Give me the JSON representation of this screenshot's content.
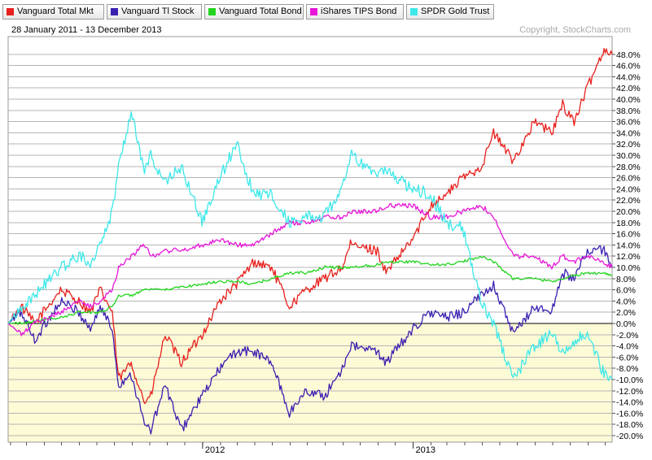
{
  "date_range": "28 January 2011 - 13 December 2013",
  "copyright": "Copyright, StockCharts.com",
  "colors": {
    "neg_bg": "#fdfad6",
    "pos_bg": "#ffffff",
    "grid": "#b5b5b5",
    "zero_line": "#000000"
  },
  "chart_data": {
    "type": "line",
    "x_tick_labels": [
      "2012",
      "2013"
    ],
    "x_tick_dates": [
      "2012-01-01",
      "2013-01-01"
    ],
    "x_range": [
      "2011-01-28",
      "2013-12-13"
    ],
    "y_axis": {
      "unit": "%",
      "ylim": [
        -21,
        50
      ],
      "tick_step": 2,
      "tick_labels": [
        "48.0%",
        "46.0%",
        "44.0%",
        "42.0%",
        "40.0%",
        "38.0%",
        "36.0%",
        "34.0%",
        "32.0%",
        "30.0%",
        "28.0%",
        "26.0%",
        "24.0%",
        "22.0%",
        "20.0%",
        "18.0%",
        "16.0%",
        "14.0%",
        "12.0%",
        "10.0%",
        "8.0%",
        "6.0%",
        "4.0%",
        "2.0%",
        "0.0%",
        "-2.0%",
        "-4.0%",
        "-6.0%",
        "-8.0%",
        "-10.0%",
        "-12.0%",
        "-14.0%",
        "-16.0%",
        "-18.0%",
        "-20.0%"
      ]
    },
    "grid": true,
    "legend_position": "top",
    "series": [
      {
        "name": "Vanguard Total Mkt",
        "color": "#e8201c",
        "points": [
          [
            "2011-01-28",
            0
          ],
          [
            "2011-02-20",
            3
          ],
          [
            "2011-03-15",
            0
          ],
          [
            "2011-04-29",
            6
          ],
          [
            "2011-05-31",
            4
          ],
          [
            "2011-06-20",
            2
          ],
          [
            "2011-07-07",
            6
          ],
          [
            "2011-07-28",
            2
          ],
          [
            "2011-08-08",
            -10
          ],
          [
            "2011-08-30",
            -7
          ],
          [
            "2011-09-22",
            -14
          ],
          [
            "2011-10-03",
            -13
          ],
          [
            "2011-10-28",
            -2
          ],
          [
            "2011-11-25",
            -7
          ],
          [
            "2011-12-31",
            -2
          ],
          [
            "2012-01-31",
            4
          ],
          [
            "2012-02-29",
            7
          ],
          [
            "2012-03-30",
            11
          ],
          [
            "2012-04-30",
            10
          ],
          [
            "2012-05-31",
            3
          ],
          [
            "2012-06-29",
            6
          ],
          [
            "2012-07-31",
            8
          ],
          [
            "2012-08-31",
            10
          ],
          [
            "2012-09-14",
            14
          ],
          [
            "2012-10-31",
            13
          ],
          [
            "2012-11-15",
            9
          ],
          [
            "2012-12-31",
            15
          ],
          [
            "2013-01-31",
            21
          ],
          [
            "2013-02-28",
            23
          ],
          [
            "2013-03-28",
            26
          ],
          [
            "2013-04-30",
            28
          ],
          [
            "2013-05-21",
            34
          ],
          [
            "2013-06-24",
            29
          ],
          [
            "2013-07-31",
            36
          ],
          [
            "2013-08-30",
            34
          ],
          [
            "2013-09-18",
            39
          ],
          [
            "2013-10-08",
            36
          ],
          [
            "2013-10-31",
            42
          ],
          [
            "2013-11-29",
            49
          ],
          [
            "2013-12-13",
            48
          ]
        ]
      },
      {
        "name": "Vanguard Tl Stock",
        "color": "#3a1fb0",
        "points": [
          [
            "2011-01-28",
            0
          ],
          [
            "2011-02-20",
            2
          ],
          [
            "2011-03-15",
            -3
          ],
          [
            "2011-04-29",
            4
          ],
          [
            "2011-05-31",
            2
          ],
          [
            "2011-06-20",
            -1
          ],
          [
            "2011-07-07",
            3
          ],
          [
            "2011-07-28",
            -1
          ],
          [
            "2011-08-08",
            -11
          ],
          [
            "2011-08-30",
            -9
          ],
          [
            "2011-09-22",
            -18
          ],
          [
            "2011-10-03",
            -19
          ],
          [
            "2011-10-28",
            -11
          ],
          [
            "2011-11-25",
            -19
          ],
          [
            "2011-12-31",
            -13
          ],
          [
            "2012-01-31",
            -8
          ],
          [
            "2012-02-29",
            -5
          ],
          [
            "2012-03-30",
            -5
          ],
          [
            "2012-04-30",
            -7
          ],
          [
            "2012-05-31",
            -16
          ],
          [
            "2012-06-29",
            -12
          ],
          [
            "2012-07-31",
            -13
          ],
          [
            "2012-08-31",
            -8
          ],
          [
            "2012-09-14",
            -4
          ],
          [
            "2012-10-31",
            -5
          ],
          [
            "2012-11-15",
            -7
          ],
          [
            "2012-12-31",
            -1
          ],
          [
            "2013-01-31",
            2
          ],
          [
            "2013-02-28",
            1
          ],
          [
            "2013-03-28",
            2
          ],
          [
            "2013-04-30",
            5
          ],
          [
            "2013-05-21",
            7
          ],
          [
            "2013-06-24",
            -2
          ],
          [
            "2013-07-31",
            3
          ],
          [
            "2013-08-30",
            2
          ],
          [
            "2013-09-18",
            9
          ],
          [
            "2013-10-08",
            8
          ],
          [
            "2013-10-31",
            13
          ],
          [
            "2013-11-29",
            13
          ],
          [
            "2013-12-13",
            10
          ]
        ]
      },
      {
        "name": "Vanguard Total Bond",
        "color": "#22d41e",
        "points": [
          [
            "2011-01-28",
            0
          ],
          [
            "2011-02-20",
            0
          ],
          [
            "2011-03-15",
            0.5
          ],
          [
            "2011-04-29",
            1
          ],
          [
            "2011-05-31",
            2
          ],
          [
            "2011-06-20",
            2
          ],
          [
            "2011-07-07",
            2
          ],
          [
            "2011-07-28",
            3
          ],
          [
            "2011-08-08",
            5
          ],
          [
            "2011-08-30",
            5
          ],
          [
            "2011-09-22",
            6
          ],
          [
            "2011-10-03",
            6
          ],
          [
            "2011-10-28",
            6
          ],
          [
            "2011-11-25",
            6.5
          ],
          [
            "2011-12-31",
            7
          ],
          [
            "2012-01-31",
            7.5
          ],
          [
            "2012-02-29",
            7.5
          ],
          [
            "2012-03-30",
            7
          ],
          [
            "2012-04-30",
            8
          ],
          [
            "2012-05-31",
            9
          ],
          [
            "2012-06-29",
            9
          ],
          [
            "2012-07-31",
            10
          ],
          [
            "2012-08-31",
            10
          ],
          [
            "2012-09-14",
            10
          ],
          [
            "2012-10-31",
            10.5
          ],
          [
            "2012-11-15",
            11
          ],
          [
            "2012-12-31",
            11
          ],
          [
            "2013-01-31",
            10.5
          ],
          [
            "2013-02-28",
            10.5
          ],
          [
            "2013-03-28",
            11
          ],
          [
            "2013-04-30",
            12
          ],
          [
            "2013-05-21",
            11
          ],
          [
            "2013-06-24",
            8
          ],
          [
            "2013-07-31",
            8
          ],
          [
            "2013-08-30",
            7.5
          ],
          [
            "2013-09-18",
            8
          ],
          [
            "2013-10-08",
            8.5
          ],
          [
            "2013-10-31",
            9
          ],
          [
            "2013-11-29",
            9
          ],
          [
            "2013-12-13",
            8.5
          ]
        ]
      },
      {
        "name": "iShares TIPS Bond",
        "color": "#e615d8",
        "points": [
          [
            "2011-01-28",
            0
          ],
          [
            "2011-02-20",
            -2
          ],
          [
            "2011-03-15",
            0
          ],
          [
            "2011-04-29",
            2
          ],
          [
            "2011-05-31",
            4
          ],
          [
            "2011-06-20",
            3
          ],
          [
            "2011-07-07",
            4
          ],
          [
            "2011-07-28",
            6
          ],
          [
            "2011-08-08",
            10
          ],
          [
            "2011-08-30",
            12
          ],
          [
            "2011-09-22",
            14
          ],
          [
            "2011-10-03",
            12
          ],
          [
            "2011-10-28",
            13
          ],
          [
            "2011-11-25",
            13
          ],
          [
            "2011-12-31",
            14
          ],
          [
            "2012-01-31",
            15
          ],
          [
            "2012-02-29",
            14
          ],
          [
            "2012-03-30",
            14
          ],
          [
            "2012-04-30",
            16
          ],
          [
            "2012-05-31",
            18
          ],
          [
            "2012-06-29",
            18
          ],
          [
            "2012-07-31",
            19
          ],
          [
            "2012-08-31",
            19
          ],
          [
            "2012-09-14",
            20
          ],
          [
            "2012-10-31",
            20
          ],
          [
            "2012-11-15",
            21
          ],
          [
            "2012-12-31",
            21
          ],
          [
            "2013-01-31",
            19
          ],
          [
            "2013-02-28",
            19
          ],
          [
            "2013-03-28",
            20
          ],
          [
            "2013-04-30",
            21
          ],
          [
            "2013-05-21",
            19
          ],
          [
            "2013-06-24",
            12
          ],
          [
            "2013-07-31",
            12
          ],
          [
            "2013-08-30",
            10
          ],
          [
            "2013-09-18",
            12
          ],
          [
            "2013-10-08",
            11
          ],
          [
            "2013-10-31",
            12
          ],
          [
            "2013-11-29",
            11
          ],
          [
            "2013-12-13",
            10
          ]
        ]
      },
      {
        "name": "SPDR Gold Trust",
        "color": "#3de8ea",
        "points": [
          [
            "2011-01-28",
            0
          ],
          [
            "2011-02-20",
            3
          ],
          [
            "2011-03-15",
            5
          ],
          [
            "2011-04-29",
            10
          ],
          [
            "2011-05-31",
            12
          ],
          [
            "2011-06-20",
            11
          ],
          [
            "2011-07-07",
            14
          ],
          [
            "2011-07-28",
            20
          ],
          [
            "2011-08-08",
            28
          ],
          [
            "2011-08-30",
            38
          ],
          [
            "2011-09-22",
            27
          ],
          [
            "2011-10-03",
            30
          ],
          [
            "2011-10-28",
            25
          ],
          [
            "2011-11-25",
            28
          ],
          [
            "2011-12-31",
            18
          ],
          [
            "2012-01-31",
            26
          ],
          [
            "2012-02-29",
            32
          ],
          [
            "2012-03-30",
            23
          ],
          [
            "2012-04-30",
            23
          ],
          [
            "2012-05-31",
            18
          ],
          [
            "2012-06-29",
            19
          ],
          [
            "2012-07-31",
            19
          ],
          [
            "2012-08-31",
            24
          ],
          [
            "2012-09-14",
            30
          ],
          [
            "2012-10-31",
            27
          ],
          [
            "2012-11-15",
            27
          ],
          [
            "2012-12-31",
            24
          ],
          [
            "2013-01-31",
            23
          ],
          [
            "2013-02-28",
            18
          ],
          [
            "2013-03-28",
            17
          ],
          [
            "2013-04-30",
            4
          ],
          [
            "2013-05-21",
            0
          ],
          [
            "2013-06-24",
            -10
          ],
          [
            "2013-07-31",
            -4
          ],
          [
            "2013-08-30",
            -2
          ],
          [
            "2013-09-18",
            -5
          ],
          [
            "2013-10-08",
            -3
          ],
          [
            "2013-10-31",
            -2
          ],
          [
            "2013-11-29",
            -9
          ],
          [
            "2013-12-13",
            -10
          ]
        ]
      }
    ]
  }
}
